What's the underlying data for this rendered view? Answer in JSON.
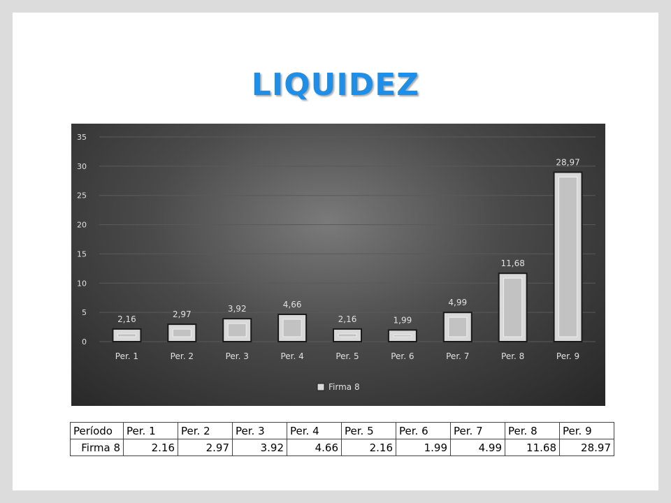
{
  "title": "LIQUIDEZ",
  "colors": {
    "title": "#1f8ee6",
    "bar_fill": "#d9d9d9",
    "bar_inner": "#c2c2c2",
    "bar_stroke": "#1a1a1a",
    "chart_text": "#e0e0e0",
    "gridline": "#5a5a5a"
  },
  "chart_data": {
    "type": "bar",
    "categories": [
      "Per. 1",
      "Per. 2",
      "Per. 3",
      "Per. 4",
      "Per. 5",
      "Per. 6",
      "Per. 7",
      "Per. 8",
      "Per. 9"
    ],
    "series": [
      {
        "name": "Firma 8",
        "values": [
          2.16,
          2.97,
          3.92,
          4.66,
          2.16,
          1.99,
          4.99,
          11.68,
          28.97
        ],
        "labels": [
          "2,16",
          "2,97",
          "3,92",
          "4,66",
          "2,16",
          "1,99",
          "4,99",
          "11,68",
          "28,97"
        ]
      }
    ],
    "yticks": [
      "0",
      "5",
      "10",
      "15",
      "20",
      "25",
      "30",
      "35"
    ],
    "ylim": [
      0,
      35
    ],
    "grid": true,
    "legend_position": "bottom"
  },
  "table": {
    "header_label": "Período",
    "periods": [
      "Per. 1",
      "Per. 2",
      "Per. 3",
      "Per. 4",
      "Per. 5",
      "Per. 6",
      "Per. 7",
      "Per. 8",
      "Per. 9"
    ],
    "row_label": "Firma 8",
    "values": [
      "2.16",
      "2.97",
      "3.92",
      "4.66",
      "2.16",
      "1.99",
      "4.99",
      "11.68",
      "28.97"
    ]
  }
}
